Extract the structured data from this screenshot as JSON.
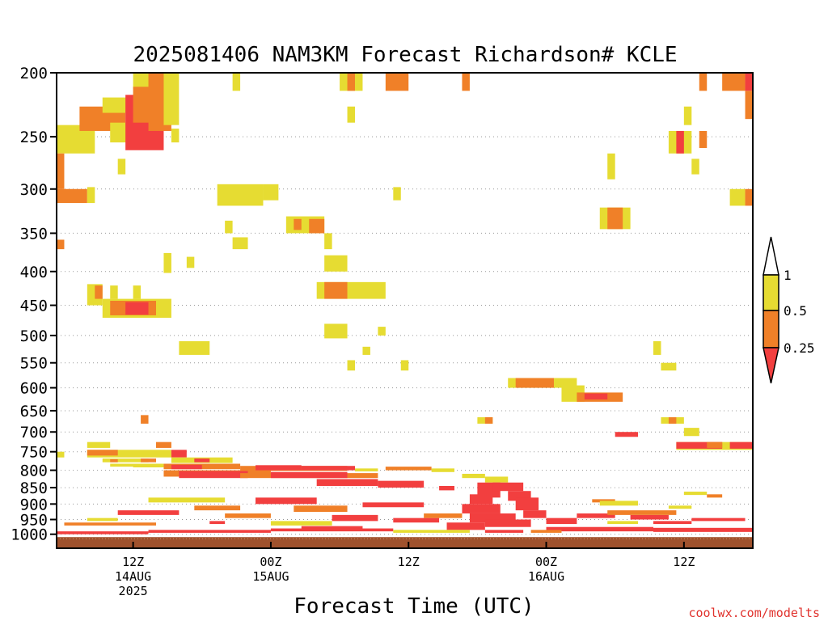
{
  "chart_data": {
    "type": "heatmap",
    "title": "2025081406 NAM3KM Forecast Richardson# KCLE",
    "xlabel": "Forecast Time (UTC)",
    "ylabel": "",
    "y_scale": "log-pressure (hPa), inverted",
    "ylim": [
      1050,
      200
    ],
    "y_ticks": [
      200,
      250,
      300,
      350,
      400,
      450,
      500,
      550,
      600,
      650,
      700,
      750,
      800,
      850,
      900,
      950,
      1000
    ],
    "x_ticks": [
      {
        "hour": 12,
        "lines": [
          "12Z",
          "14AUG",
          "2025"
        ]
      },
      {
        "hour": 30,
        "lines": [
          "00Z",
          "15AUG"
        ]
      },
      {
        "hour": 48,
        "lines": [
          "12Z"
        ]
      },
      {
        "hour": 66,
        "lines": [
          "00Z",
          "16AUG"
        ]
      },
      {
        "hour": 84,
        "lines": [
          "12Z"
        ]
      }
    ],
    "xlim": [
      2,
      93
    ],
    "grid": "dotted horizontal",
    "legend": {
      "placement": "right",
      "labels": [
        "1",
        "0.5",
        "0.25"
      ],
      "bins": [
        {
          "range": "<0.25",
          "color": "#f23f3f"
        },
        {
          "range": "0.25-0.5",
          "color": "#f08028"
        },
        {
          "range": "0.5-1",
          "color": "#e6dc32"
        },
        {
          "range": ">1",
          "color": "#ffffff"
        }
      ]
    },
    "ground_color": "#a0522d",
    "ground_top_hpa": 1010,
    "regions": [
      {
        "h0": 2,
        "h1": 7,
        "p0": 240,
        "p1": 265,
        "c": "Y"
      },
      {
        "h0": 5,
        "h1": 11,
        "p0": 225,
        "p1": 245,
        "c": "O"
      },
      {
        "h0": 8,
        "h1": 14,
        "p0": 218,
        "p1": 230,
        "c": "Y"
      },
      {
        "h0": 9,
        "h1": 13,
        "p0": 238,
        "p1": 255,
        "c": "Y"
      },
      {
        "h0": 11,
        "h1": 16,
        "p0": 216,
        "p1": 262,
        "c": "R"
      },
      {
        "h0": 12,
        "h1": 15,
        "p0": 200,
        "p1": 212,
        "c": "Y"
      },
      {
        "h0": 12,
        "h1": 16,
        "p0": 210,
        "p1": 238,
        "c": "O"
      },
      {
        "h0": 14,
        "h1": 17,
        "p0": 200,
        "p1": 245,
        "c": "O"
      },
      {
        "h0": 16,
        "h1": 18,
        "p0": 200,
        "p1": 240,
        "c": "Y"
      },
      {
        "h0": 17,
        "h1": 18,
        "p0": 243,
        "p1": 255,
        "c": "Y"
      },
      {
        "h0": 10,
        "h1": 11,
        "p0": 270,
        "p1": 285,
        "c": "Y"
      },
      {
        "h0": 2,
        "h1": 3,
        "p0": 265,
        "p1": 300,
        "c": "O"
      },
      {
        "h0": 2,
        "h1": 6,
        "p0": 300,
        "p1": 315,
        "c": "O"
      },
      {
        "h0": 6,
        "h1": 7,
        "p0": 298,
        "p1": 315,
        "c": "Y"
      },
      {
        "h0": 2,
        "h1": 3,
        "p0": 358,
        "p1": 370,
        "c": "O"
      },
      {
        "h0": 23,
        "h1": 29,
        "p0": 295,
        "p1": 318,
        "c": "Y"
      },
      {
        "h0": 29,
        "h1": 31,
        "p0": 295,
        "p1": 312,
        "c": "Y"
      },
      {
        "h0": 25,
        "h1": 26,
        "p0": 200,
        "p1": 213,
        "c": "Y"
      },
      {
        "h0": 24,
        "h1": 25,
        "p0": 335,
        "p1": 350,
        "c": "Y"
      },
      {
        "h0": 25,
        "h1": 27,
        "p0": 355,
        "p1": 370,
        "c": "Y"
      },
      {
        "h0": 32,
        "h1": 37,
        "p0": 330,
        "p1": 350,
        "c": "Y"
      },
      {
        "h0": 33,
        "h1": 34,
        "p0": 333,
        "p1": 346,
        "c": "O"
      },
      {
        "h0": 35,
        "h1": 37,
        "p0": 333,
        "p1": 350,
        "c": "O"
      },
      {
        "h0": 37,
        "h1": 38,
        "p0": 350,
        "p1": 370,
        "c": "Y"
      },
      {
        "h0": 16,
        "h1": 17,
        "p0": 375,
        "p1": 402,
        "c": "Y"
      },
      {
        "h0": 19,
        "h1": 20,
        "p0": 380,
        "p1": 395,
        "c": "Y"
      },
      {
        "h0": 37,
        "h1": 40,
        "p0": 378,
        "p1": 400,
        "c": "Y"
      },
      {
        "h0": 36,
        "h1": 45,
        "p0": 415,
        "p1": 440,
        "c": "Y"
      },
      {
        "h0": 37,
        "h1": 40,
        "p0": 415,
        "p1": 440,
        "c": "O"
      },
      {
        "h0": 39,
        "h1": 42,
        "p0": 200,
        "p1": 213,
        "c": "Y"
      },
      {
        "h0": 40,
        "h1": 41,
        "p0": 200,
        "p1": 213,
        "c": "O"
      },
      {
        "h0": 40,
        "h1": 41,
        "p0": 225,
        "p1": 238,
        "c": "Y"
      },
      {
        "h0": 45,
        "h1": 48,
        "p0": 200,
        "p1": 213,
        "c": "O"
      },
      {
        "h0": 46,
        "h1": 47,
        "p0": 298,
        "p1": 312,
        "c": "Y"
      },
      {
        "h0": 55,
        "h1": 56,
        "p0": 200,
        "p1": 213,
        "c": "O"
      },
      {
        "h0": 6,
        "h1": 8,
        "p0": 418,
        "p1": 450,
        "c": "Y"
      },
      {
        "h0": 7,
        "h1": 8,
        "p0": 420,
        "p1": 440,
        "c": "O"
      },
      {
        "h0": 9,
        "h1": 10,
        "p0": 420,
        "p1": 440,
        "c": "Y"
      },
      {
        "h0": 12,
        "h1": 13,
        "p0": 420,
        "p1": 440,
        "c": "Y"
      },
      {
        "h0": 8,
        "h1": 17,
        "p0": 440,
        "p1": 470,
        "c": "Y"
      },
      {
        "h0": 9,
        "h1": 15,
        "p0": 443,
        "p1": 466,
        "c": "O"
      },
      {
        "h0": 11,
        "h1": 14,
        "p0": 445,
        "p1": 465,
        "c": "R"
      },
      {
        "h0": 37,
        "h1": 40,
        "p0": 480,
        "p1": 505,
        "c": "Y"
      },
      {
        "h0": 44,
        "h1": 45,
        "p0": 485,
        "p1": 500,
        "c": "Y"
      },
      {
        "h0": 18,
        "h1": 22,
        "p0": 510,
        "p1": 535,
        "c": "Y"
      },
      {
        "h0": 40,
        "h1": 41,
        "p0": 545,
        "p1": 565,
        "c": "Y"
      },
      {
        "h0": 42,
        "h1": 43,
        "p0": 520,
        "p1": 535,
        "c": "Y"
      },
      {
        "h0": 47,
        "h1": 48,
        "p0": 545,
        "p1": 565,
        "c": "Y"
      },
      {
        "h0": 61,
        "h1": 70,
        "p0": 580,
        "p1": 600,
        "c": "Y"
      },
      {
        "h0": 62,
        "h1": 67,
        "p0": 580,
        "p1": 600,
        "c": "O"
      },
      {
        "h0": 68,
        "h1": 71,
        "p0": 595,
        "p1": 630,
        "c": "Y"
      },
      {
        "h0": 70,
        "h1": 76,
        "p0": 610,
        "p1": 630,
        "c": "O"
      },
      {
        "h0": 71,
        "h1": 74,
        "p0": 612,
        "p1": 625,
        "c": "R"
      },
      {
        "h0": 74,
        "h1": 75,
        "p0": 265,
        "p1": 290,
        "c": "Y"
      },
      {
        "h0": 73,
        "h1": 77,
        "p0": 320,
        "p1": 345,
        "c": "Y"
      },
      {
        "h0": 74,
        "h1": 76,
        "p0": 320,
        "p1": 345,
        "c": "O"
      },
      {
        "h0": 80,
        "h1": 81,
        "p0": 510,
        "p1": 535,
        "c": "Y"
      },
      {
        "h0": 81,
        "h1": 83,
        "p0": 550,
        "p1": 565,
        "c": "Y"
      },
      {
        "h0": 82,
        "h1": 85,
        "p0": 245,
        "p1": 265,
        "c": "Y"
      },
      {
        "h0": 83,
        "h1": 84,
        "p0": 245,
        "p1": 265,
        "c": "R"
      },
      {
        "h0": 84,
        "h1": 85,
        "p0": 225,
        "p1": 240,
        "c": "Y"
      },
      {
        "h0": 85,
        "h1": 86,
        "p0": 270,
        "p1": 285,
        "c": "Y"
      },
      {
        "h0": 86,
        "h1": 87,
        "p0": 200,
        "p1": 213,
        "c": "O"
      },
      {
        "h0": 86,
        "h1": 87,
        "p0": 245,
        "p1": 260,
        "c": "O"
      },
      {
        "h0": 89,
        "h1": 92,
        "p0": 200,
        "p1": 213,
        "c": "O"
      },
      {
        "h0": 92,
        "h1": 93,
        "p0": 200,
        "p1": 213,
        "c": "R"
      },
      {
        "h0": 92,
        "h1": 93,
        "p0": 213,
        "p1": 235,
        "c": "O"
      },
      {
        "h0": 90,
        "h1": 92,
        "p0": 300,
        "p1": 318,
        "c": "Y"
      },
      {
        "h0": 92,
        "h1": 93,
        "p0": 300,
        "p1": 318,
        "c": "O"
      },
      {
        "h0": 57,
        "h1": 59,
        "p0": 665,
        "p1": 680,
        "c": "Y"
      },
      {
        "h0": 58,
        "h1": 59,
        "p0": 665,
        "p1": 680,
        "c": "O"
      },
      {
        "h0": 13,
        "h1": 14,
        "p0": 660,
        "p1": 680,
        "c": "O"
      },
      {
        "h0": 81,
        "h1": 84,
        "p0": 665,
        "p1": 680,
        "c": "Y"
      },
      {
        "h0": 82,
        "h1": 83,
        "p0": 665,
        "p1": 680,
        "c": "O"
      },
      {
        "h0": 75,
        "h1": 78,
        "p0": 700,
        "p1": 712,
        "c": "R"
      },
      {
        "h0": 84,
        "h1": 86,
        "p0": 690,
        "p1": 710,
        "c": "Y"
      },
      {
        "h0": 83,
        "h1": 93,
        "p0": 725,
        "p1": 745,
        "c": "Y"
      },
      {
        "h0": 83,
        "h1": 89,
        "p0": 725,
        "p1": 742,
        "c": "R"
      },
      {
        "h0": 87,
        "h1": 89,
        "p0": 725,
        "p1": 740,
        "c": "O"
      },
      {
        "h0": 90,
        "h1": 93,
        "p0": 725,
        "p1": 742,
        "c": "R"
      },
      {
        "h0": 2,
        "h1": 3,
        "p0": 750,
        "p1": 765,
        "c": "Y"
      },
      {
        "h0": 6,
        "h1": 9,
        "p0": 725,
        "p1": 740,
        "c": "Y"
      },
      {
        "h0": 6,
        "h1": 17,
        "p0": 745,
        "p1": 765,
        "c": "Y"
      },
      {
        "h0": 6,
        "h1": 10,
        "p0": 745,
        "p1": 760,
        "c": "O"
      },
      {
        "h0": 15,
        "h1": 17,
        "p0": 725,
        "p1": 740,
        "c": "O"
      },
      {
        "h0": 17,
        "h1": 19,
        "p0": 745,
        "p1": 765,
        "c": "R"
      },
      {
        "h0": 8,
        "h1": 14,
        "p0": 768,
        "p1": 778,
        "c": "Y"
      },
      {
        "h0": 9,
        "h1": 10,
        "p0": 770,
        "p1": 778,
        "c": "O"
      },
      {
        "h0": 13,
        "h1": 15,
        "p0": 768,
        "p1": 778,
        "c": "O"
      },
      {
        "h0": 17,
        "h1": 25,
        "p0": 765,
        "p1": 780,
        "c": "Y"
      },
      {
        "h0": 20,
        "h1": 22,
        "p0": 768,
        "p1": 778,
        "c": "R"
      },
      {
        "h0": 16,
        "h1": 26,
        "p0": 782,
        "p1": 797,
        "c": "O"
      },
      {
        "h0": 17,
        "h1": 21,
        "p0": 785,
        "p1": 797,
        "c": "R"
      },
      {
        "h0": 12,
        "h1": 16,
        "p0": 782,
        "p1": 792,
        "c": "Y"
      },
      {
        "h0": 9,
        "h1": 13,
        "p0": 782,
        "p1": 790,
        "c": "Y"
      },
      {
        "h0": 16,
        "h1": 30,
        "p0": 800,
        "p1": 818,
        "c": "O"
      },
      {
        "h0": 18,
        "h1": 27,
        "p0": 802,
        "p1": 822,
        "c": "R"
      },
      {
        "h0": 26,
        "h1": 40,
        "p0": 788,
        "p1": 802,
        "c": "O"
      },
      {
        "h0": 28,
        "h1": 34,
        "p0": 786,
        "p1": 800,
        "c": "R"
      },
      {
        "h0": 34,
        "h1": 41,
        "p0": 788,
        "p1": 800,
        "c": "R"
      },
      {
        "h0": 26,
        "h1": 44,
        "p0": 808,
        "p1": 822,
        "c": "O"
      },
      {
        "h0": 30,
        "h1": 40,
        "p0": 805,
        "p1": 822,
        "c": "R"
      },
      {
        "h0": 36,
        "h1": 44,
        "p0": 825,
        "p1": 845,
        "c": "R"
      },
      {
        "h0": 44,
        "h1": 50,
        "p0": 830,
        "p1": 850,
        "c": "R"
      },
      {
        "h0": 45,
        "h1": 51,
        "p0": 790,
        "p1": 800,
        "c": "O"
      },
      {
        "h0": 41,
        "h1": 44,
        "p0": 795,
        "p1": 803,
        "c": "Y"
      },
      {
        "h0": 51,
        "h1": 54,
        "p0": 795,
        "p1": 805,
        "c": "Y"
      },
      {
        "h0": 52,
        "h1": 54,
        "p0": 845,
        "p1": 858,
        "c": "R"
      },
      {
        "h0": 55,
        "h1": 58,
        "p0": 810,
        "p1": 822,
        "c": "Y"
      },
      {
        "h0": 58,
        "h1": 61,
        "p0": 818,
        "p1": 835,
        "c": "Y"
      },
      {
        "h0": 57,
        "h1": 60,
        "p0": 835,
        "p1": 880,
        "c": "R"
      },
      {
        "h0": 59,
        "h1": 63,
        "p0": 835,
        "p1": 860,
        "c": "R"
      },
      {
        "h0": 61,
        "h1": 64,
        "p0": 860,
        "p1": 890,
        "c": "R"
      },
      {
        "h0": 56,
        "h1": 59,
        "p0": 870,
        "p1": 900,
        "c": "R"
      },
      {
        "h0": 62,
        "h1": 65,
        "p0": 880,
        "p1": 920,
        "c": "R"
      },
      {
        "h0": 63,
        "h1": 66,
        "p0": 920,
        "p1": 945,
        "c": "R"
      },
      {
        "h0": 55,
        "h1": 60,
        "p0": 900,
        "p1": 930,
        "c": "R"
      },
      {
        "h0": 56,
        "h1": 62,
        "p0": 930,
        "p1": 960,
        "c": "R"
      },
      {
        "h0": 53,
        "h1": 58,
        "p0": 960,
        "p1": 985,
        "c": "R"
      },
      {
        "h0": 58,
        "h1": 64,
        "p0": 950,
        "p1": 975,
        "c": "R"
      },
      {
        "h0": 66,
        "h1": 70,
        "p0": 945,
        "p1": 965,
        "c": "R"
      },
      {
        "h0": 70,
        "h1": 75,
        "p0": 930,
        "p1": 945,
        "c": "R"
      },
      {
        "h0": 72,
        "h1": 75,
        "p0": 885,
        "p1": 895,
        "c": "O"
      },
      {
        "h0": 73,
        "h1": 78,
        "p0": 890,
        "p1": 905,
        "c": "Y"
      },
      {
        "h0": 77,
        "h1": 82,
        "p0": 935,
        "p1": 950,
        "c": "R"
      },
      {
        "h0": 80,
        "h1": 85,
        "p0": 955,
        "p1": 965,
        "c": "R"
      },
      {
        "h0": 84,
        "h1": 87,
        "p0": 862,
        "p1": 872,
        "c": "Y"
      },
      {
        "h0": 87,
        "h1": 89,
        "p0": 870,
        "p1": 880,
        "c": "O"
      },
      {
        "h0": 74,
        "h1": 83,
        "p0": 920,
        "p1": 935,
        "c": "O"
      },
      {
        "h0": 82,
        "h1": 85,
        "p0": 905,
        "p1": 915,
        "c": "Y"
      },
      {
        "h0": 3,
        "h1": 15,
        "p0": 960,
        "p1": 970,
        "c": "O"
      },
      {
        "h0": 10,
        "h1": 18,
        "p0": 920,
        "p1": 935,
        "c": "R"
      },
      {
        "h0": 14,
        "h1": 24,
        "p0": 880,
        "p1": 895,
        "c": "Y"
      },
      {
        "h0": 20,
        "h1": 26,
        "p0": 905,
        "p1": 920,
        "c": "O"
      },
      {
        "h0": 24,
        "h1": 30,
        "p0": 930,
        "p1": 945,
        "c": "O"
      },
      {
        "h0": 28,
        "h1": 36,
        "p0": 880,
        "p1": 900,
        "c": "R"
      },
      {
        "h0": 33,
        "h1": 40,
        "p0": 905,
        "p1": 925,
        "c": "O"
      },
      {
        "h0": 38,
        "h1": 44,
        "p0": 935,
        "p1": 955,
        "c": "R"
      },
      {
        "h0": 42,
        "h1": 50,
        "p0": 895,
        "p1": 910,
        "c": "R"
      },
      {
        "h0": 46,
        "h1": 52,
        "p0": 945,
        "p1": 960,
        "c": "R"
      },
      {
        "h0": 30,
        "h1": 38,
        "p0": 955,
        "p1": 970,
        "c": "Y"
      },
      {
        "h0": 34,
        "h1": 42,
        "p0": 972,
        "p1": 985,
        "c": "R"
      },
      {
        "h0": 50,
        "h1": 55,
        "p0": 930,
        "p1": 945,
        "c": "O"
      },
      {
        "h0": 2,
        "h1": 14,
        "p0": 990,
        "p1": 1000,
        "c": "R"
      },
      {
        "h0": 14,
        "h1": 30,
        "p0": 985,
        "p1": 995,
        "c": "R"
      },
      {
        "h0": 30,
        "h1": 46,
        "p0": 980,
        "p1": 990,
        "c": "R"
      },
      {
        "h0": 46,
        "h1": 56,
        "p0": 985,
        "p1": 995,
        "c": "Y"
      },
      {
        "h0": 66,
        "h1": 80,
        "p0": 975,
        "p1": 990,
        "c": "R"
      },
      {
        "h0": 80,
        "h1": 93,
        "p0": 978,
        "p1": 992,
        "c": "R"
      },
      {
        "h0": 85,
        "h1": 92,
        "p0": 945,
        "p1": 955,
        "c": "R"
      },
      {
        "h0": 6,
        "h1": 10,
        "p0": 945,
        "p1": 955,
        "c": "Y"
      },
      {
        "h0": 22,
        "h1": 24,
        "p0": 955,
        "p1": 965,
        "c": "R"
      },
      {
        "h0": 64,
        "h1": 68,
        "p0": 985,
        "p1": 995,
        "c": "O"
      },
      {
        "h0": 58,
        "h1": 63,
        "p0": 985,
        "p1": 995,
        "c": "R"
      },
      {
        "h0": 74,
        "h1": 78,
        "p0": 955,
        "p1": 965,
        "c": "Y"
      }
    ]
  },
  "credit": "coolwx.com/modelts"
}
